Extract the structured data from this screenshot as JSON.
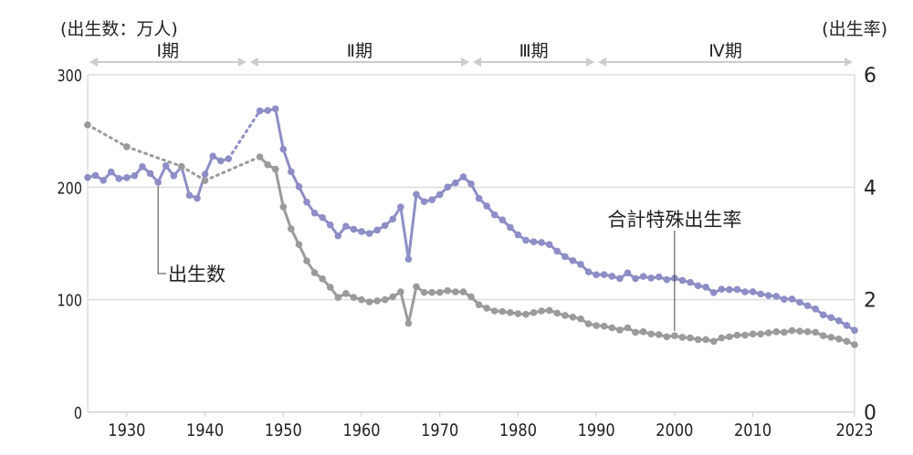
{
  "chart_data": {
    "type": "line",
    "left_axis_label": "(出生数：万人)",
    "right_axis_label": "(出生率)",
    "left_ylim": [
      0,
      300
    ],
    "right_ylim": [
      0,
      6
    ],
    "left_ticks": [
      "0",
      "100",
      "200",
      "300"
    ],
    "right_ticks": [
      "0",
      "2",
      "4",
      "6"
    ],
    "xlim": [
      1925,
      2023
    ],
    "x_ticks": [
      "1930",
      "1940",
      "1950",
      "1960",
      "1970",
      "1980",
      "1990",
      "2000",
      "2010",
      "2023"
    ],
    "grid": "horizontal",
    "periods": [
      {
        "label": "Ⅰ期",
        "from": 1925,
        "to": 1945.5
      },
      {
        "label": "Ⅱ期",
        "from": 1945.5,
        "to": 1974
      },
      {
        "label": "Ⅲ期",
        "from": 1974,
        "to": 1990
      },
      {
        "label": "Ⅳ期",
        "from": 1990,
        "to": 2023
      }
    ],
    "colors": {
      "births": "#8e8ec6",
      "tfr": "#9b9b9b",
      "grid": "#dddddd",
      "period_arrow": "#cccccc"
    },
    "series": [
      {
        "name": "出生数",
        "axis": "left",
        "dotted_gaps": [
          [
            1943,
            1947
          ]
        ],
        "points": [
          [
            1925,
            208.6
          ],
          [
            1926,
            210.5
          ],
          [
            1927,
            206.1
          ],
          [
            1928,
            213.6
          ],
          [
            1929,
            207.7
          ],
          [
            1930,
            208.5
          ],
          [
            1931,
            210.3
          ],
          [
            1932,
            218.3
          ],
          [
            1933,
            212.2
          ],
          [
            1934,
            204.4
          ],
          [
            1935,
            219.1
          ],
          [
            1936,
            210.2
          ],
          [
            1937,
            218.1
          ],
          [
            1938,
            192.8
          ],
          [
            1939,
            190.2
          ],
          [
            1940,
            211.6
          ],
          [
            1941,
            227.7
          ],
          [
            1942,
            223.4
          ],
          [
            1943,
            225.4
          ],
          [
            1947,
            267.9
          ],
          [
            1948,
            268.2
          ],
          [
            1949,
            269.7
          ],
          [
            1950,
            233.8
          ],
          [
            1951,
            213.8
          ],
          [
            1952,
            200.5
          ],
          [
            1953,
            186.8
          ],
          [
            1954,
            177.0
          ],
          [
            1955,
            173.1
          ],
          [
            1956,
            166.5
          ],
          [
            1957,
            156.7
          ],
          [
            1958,
            165.3
          ],
          [
            1959,
            162.6
          ],
          [
            1960,
            160.6
          ],
          [
            1961,
            158.9
          ],
          [
            1962,
            161.9
          ],
          [
            1963,
            166.0
          ],
          [
            1964,
            171.7
          ],
          [
            1965,
            182.4
          ],
          [
            1966,
            136.1
          ],
          [
            1967,
            193.6
          ],
          [
            1968,
            187.2
          ],
          [
            1969,
            188.9
          ],
          [
            1970,
            193.4
          ],
          [
            1971,
            200.1
          ],
          [
            1972,
            203.9
          ],
          [
            1973,
            209.2
          ],
          [
            1974,
            203.0
          ],
          [
            1975,
            190.1
          ],
          [
            1976,
            183.3
          ],
          [
            1977,
            175.5
          ],
          [
            1978,
            170.9
          ],
          [
            1979,
            164.3
          ],
          [
            1980,
            157.7
          ],
          [
            1981,
            152.9
          ],
          [
            1982,
            151.5
          ],
          [
            1983,
            150.9
          ],
          [
            1984,
            149.0
          ],
          [
            1985,
            143.2
          ],
          [
            1986,
            138.3
          ],
          [
            1987,
            134.7
          ],
          [
            1988,
            131.4
          ],
          [
            1989,
            124.7
          ],
          [
            1990,
            122.2
          ],
          [
            1991,
            122.3
          ],
          [
            1992,
            120.9
          ],
          [
            1993,
            118.8
          ],
          [
            1994,
            123.8
          ],
          [
            1995,
            118.7
          ],
          [
            1996,
            120.7
          ],
          [
            1997,
            119.2
          ],
          [
            1998,
            120.3
          ],
          [
            1999,
            117.8
          ],
          [
            2000,
            119.1
          ],
          [
            2001,
            117.1
          ],
          [
            2002,
            115.4
          ],
          [
            2003,
            112.4
          ],
          [
            2004,
            111.1
          ],
          [
            2005,
            106.3
          ],
          [
            2006,
            109.3
          ],
          [
            2007,
            109.0
          ],
          [
            2008,
            109.1
          ],
          [
            2009,
            107.0
          ],
          [
            2010,
            107.1
          ],
          [
            2011,
            105.1
          ],
          [
            2012,
            103.7
          ],
          [
            2013,
            103.0
          ],
          [
            2014,
            100.4
          ],
          [
            2015,
            100.6
          ],
          [
            2016,
            97.7
          ],
          [
            2017,
            94.6
          ],
          [
            2018,
            91.8
          ],
          [
            2019,
            86.5
          ],
          [
            2020,
            84.1
          ],
          [
            2021,
            81.2
          ],
          [
            2022,
            77.1
          ],
          [
            2023,
            72.7
          ]
        ]
      },
      {
        "name": "合計特殊出生率",
        "axis": "right",
        "dotted_gaps": [
          [
            1925,
            1947
          ]
        ],
        "points": [
          [
            1925,
            5.11
          ],
          [
            1930,
            4.72
          ],
          [
            1937,
            4.37
          ],
          [
            1940,
            4.12
          ],
          [
            1947,
            4.54
          ],
          [
            1948,
            4.4
          ],
          [
            1949,
            4.32
          ],
          [
            1950,
            3.65
          ],
          [
            1951,
            3.26
          ],
          [
            1952,
            2.98
          ],
          [
            1953,
            2.69
          ],
          [
            1954,
            2.48
          ],
          [
            1955,
            2.37
          ],
          [
            1956,
            2.22
          ],
          [
            1957,
            2.04
          ],
          [
            1958,
            2.11
          ],
          [
            1959,
            2.04
          ],
          [
            1960,
            2.0
          ],
          [
            1961,
            1.96
          ],
          [
            1962,
            1.98
          ],
          [
            1963,
            2.0
          ],
          [
            1964,
            2.05
          ],
          [
            1965,
            2.14
          ],
          [
            1966,
            1.58
          ],
          [
            1967,
            2.23
          ],
          [
            1968,
            2.13
          ],
          [
            1969,
            2.13
          ],
          [
            1970,
            2.13
          ],
          [
            1971,
            2.16
          ],
          [
            1972,
            2.14
          ],
          [
            1973,
            2.14
          ],
          [
            1974,
            2.05
          ],
          [
            1975,
            1.91
          ],
          [
            1976,
            1.85
          ],
          [
            1977,
            1.8
          ],
          [
            1978,
            1.79
          ],
          [
            1979,
            1.77
          ],
          [
            1980,
            1.75
          ],
          [
            1981,
            1.74
          ],
          [
            1982,
            1.77
          ],
          [
            1983,
            1.8
          ],
          [
            1984,
            1.81
          ],
          [
            1985,
            1.76
          ],
          [
            1986,
            1.72
          ],
          [
            1987,
            1.69
          ],
          [
            1988,
            1.66
          ],
          [
            1989,
            1.57
          ],
          [
            1990,
            1.54
          ],
          [
            1991,
            1.53
          ],
          [
            1992,
            1.5
          ],
          [
            1993,
            1.46
          ],
          [
            1994,
            1.5
          ],
          [
            1995,
            1.42
          ],
          [
            1996,
            1.43
          ],
          [
            1997,
            1.39
          ],
          [
            1998,
            1.38
          ],
          [
            1999,
            1.34
          ],
          [
            2000,
            1.36
          ],
          [
            2001,
            1.33
          ],
          [
            2002,
            1.32
          ],
          [
            2003,
            1.29
          ],
          [
            2004,
            1.29
          ],
          [
            2005,
            1.26
          ],
          [
            2006,
            1.32
          ],
          [
            2007,
            1.34
          ],
          [
            2008,
            1.37
          ],
          [
            2009,
            1.37
          ],
          [
            2010,
            1.39
          ],
          [
            2011,
            1.39
          ],
          [
            2012,
            1.41
          ],
          [
            2013,
            1.43
          ],
          [
            2014,
            1.42
          ],
          [
            2015,
            1.45
          ],
          [
            2016,
            1.44
          ],
          [
            2017,
            1.43
          ],
          [
            2018,
            1.42
          ],
          [
            2019,
            1.36
          ],
          [
            2020,
            1.33
          ],
          [
            2021,
            1.3
          ],
          [
            2022,
            1.26
          ],
          [
            2023,
            1.2
          ]
        ]
      }
    ],
    "annotations": [
      {
        "text": "出生数",
        "series": "出生数",
        "year": 1934
      },
      {
        "text": "合計特殊出生率",
        "series": "合計特殊出生率",
        "year": 2000
      }
    ]
  }
}
